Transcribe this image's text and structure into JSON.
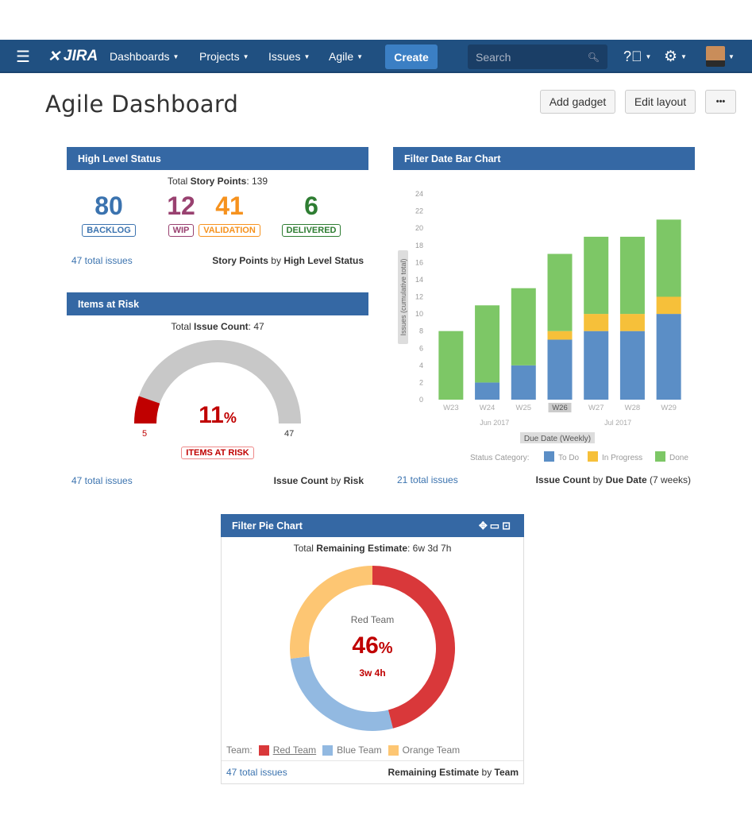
{
  "nav": {
    "logo": "JIRA",
    "items": [
      "Dashboards",
      "Projects",
      "Issues",
      "Agile"
    ],
    "create": "Create",
    "search_placeholder": "Search",
    "icons": [
      "menu-icon",
      "help-icon",
      "gear-icon",
      "avatar"
    ]
  },
  "page": {
    "title": "Agile Dashboard",
    "add_gadget": "Add gadget",
    "edit_layout": "Edit layout",
    "more": "•••"
  },
  "high_level": {
    "title": "High Level Status",
    "total_prefix": "Total ",
    "total_label": "Story Points",
    "total_value": ": 139",
    "stats": [
      {
        "value": "80",
        "label": "BACKLOG",
        "color": "#3b73af"
      },
      {
        "value": "12",
        "label": "WIP",
        "color": "#994170"
      },
      {
        "value": "41",
        "label": "VALIDATION",
        "color": "#f6921e"
      },
      {
        "value": "6",
        "label": "DELIVERED",
        "color": "#2e7d32"
      }
    ],
    "footer_link": "47 total issues",
    "footer_a": "Story Points",
    "footer_by": " by ",
    "footer_b": "High Level Status"
  },
  "risk": {
    "title": "Items at Risk",
    "total_prefix": "Total ",
    "total_label": "Issue Count",
    "total_value": ": 47",
    "percent": "11",
    "pct_sign": "%",
    "min": "5",
    "max": "47",
    "badge": "ITEMS AT RISK",
    "at_risk": 5,
    "total": 47,
    "footer_link": "47 total issues",
    "footer_a": "Issue Count",
    "footer_by": " by ",
    "footer_b": "Risk"
  },
  "bar": {
    "title": "Filter Date Bar Chart",
    "footer_link": "21 total issues",
    "footer_a": "Issue Count",
    "footer_by": " by ",
    "footer_b": "Due Date",
    "footer_c": " (7 weeks)"
  },
  "chart_data": {
    "type": "bar",
    "stacked": true,
    "categories": [
      "W23",
      "W24",
      "W25",
      "W26",
      "W27",
      "W28",
      "W29"
    ],
    "month_labels": [
      "Jun 2017",
      "Jul 2017"
    ],
    "series": [
      {
        "name": "To Do",
        "color": "#5b8ec6",
        "values": [
          0,
          2,
          4,
          7,
          8,
          8,
          10
        ]
      },
      {
        "name": "In Progress",
        "color": "#f6c03a",
        "values": [
          0,
          0,
          0,
          1,
          2,
          2,
          2
        ]
      },
      {
        "name": "Done",
        "color": "#7dc766",
        "values": [
          8,
          9,
          9,
          9,
          9,
          9,
          9
        ]
      }
    ],
    "ylabel": "Issues (cumulative total)",
    "xlabel": "Due Date (Weekly)",
    "legend_title": "Status Category:",
    "ylim": [
      0,
      24
    ],
    "yticks": [
      0,
      2,
      4,
      6,
      8,
      10,
      12,
      14,
      16,
      18,
      20,
      22,
      24
    ],
    "highlighted": "W26",
    "legend": "bottom"
  },
  "pie": {
    "title": "Filter Pie Chart",
    "total_prefix": "Total ",
    "total_label": "Remaining Estimate",
    "total_value": ": 6w 3d 7h",
    "center_label": "Red Team",
    "center_pct": "46",
    "pct_sign": "%",
    "center_value": "3w 4h",
    "legend_title": "Team:",
    "slices": [
      {
        "name": "Red Team",
        "color": "#d9383a",
        "percent": 46
      },
      {
        "name": "Blue Team",
        "color": "#92b9e1",
        "percent": 27
      },
      {
        "name": "Orange Team",
        "color": "#fdc673",
        "percent": 27
      }
    ],
    "footer_link": "47 total issues",
    "footer_a": "Remaining Estimate",
    "footer_by": " by ",
    "footer_b": "Team"
  }
}
